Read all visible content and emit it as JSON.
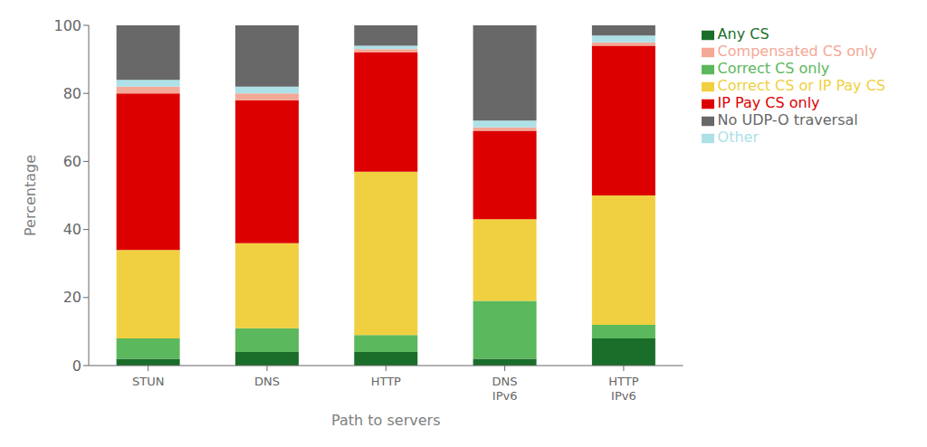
{
  "chart_data": {
    "type": "bar",
    "stacked": true,
    "categories": [
      "STUN",
      "DNS",
      "HTTP",
      "DNS\nIPv6",
      "HTTP\nIPv6"
    ],
    "series": [
      {
        "name": "Any CS",
        "color": "#1a6e2a",
        "values": [
          2,
          4,
          4,
          2,
          8
        ]
      },
      {
        "name": "Correct CS only",
        "color": "#5cb85c",
        "values": [
          6,
          7,
          5,
          17,
          4
        ]
      },
      {
        "name": "Correct CS or IP Pay CS",
        "color": "#f0d040",
        "values": [
          26,
          25,
          48,
          24,
          38
        ]
      },
      {
        "name": "IP Pay CS only",
        "color": "#dd0000",
        "values": [
          46,
          42,
          35,
          26,
          44
        ]
      },
      {
        "name": "Compensated CS only",
        "color": "#f4a896",
        "values": [
          2,
          2,
          1,
          1,
          1
        ]
      },
      {
        "name": "Other",
        "color": "#aee0e8",
        "values": [
          2,
          2,
          1,
          2,
          2
        ]
      },
      {
        "name": "No UDP-O traversal",
        "color": "#686868",
        "values": [
          16,
          18,
          6,
          28,
          3
        ]
      }
    ],
    "xlabel": "Path to servers",
    "ylabel": "Percentage",
    "ylim": [
      0,
      100
    ],
    "yticks": [
      0,
      20,
      40,
      60,
      80,
      100
    ],
    "grid": false,
    "legend": "right"
  }
}
